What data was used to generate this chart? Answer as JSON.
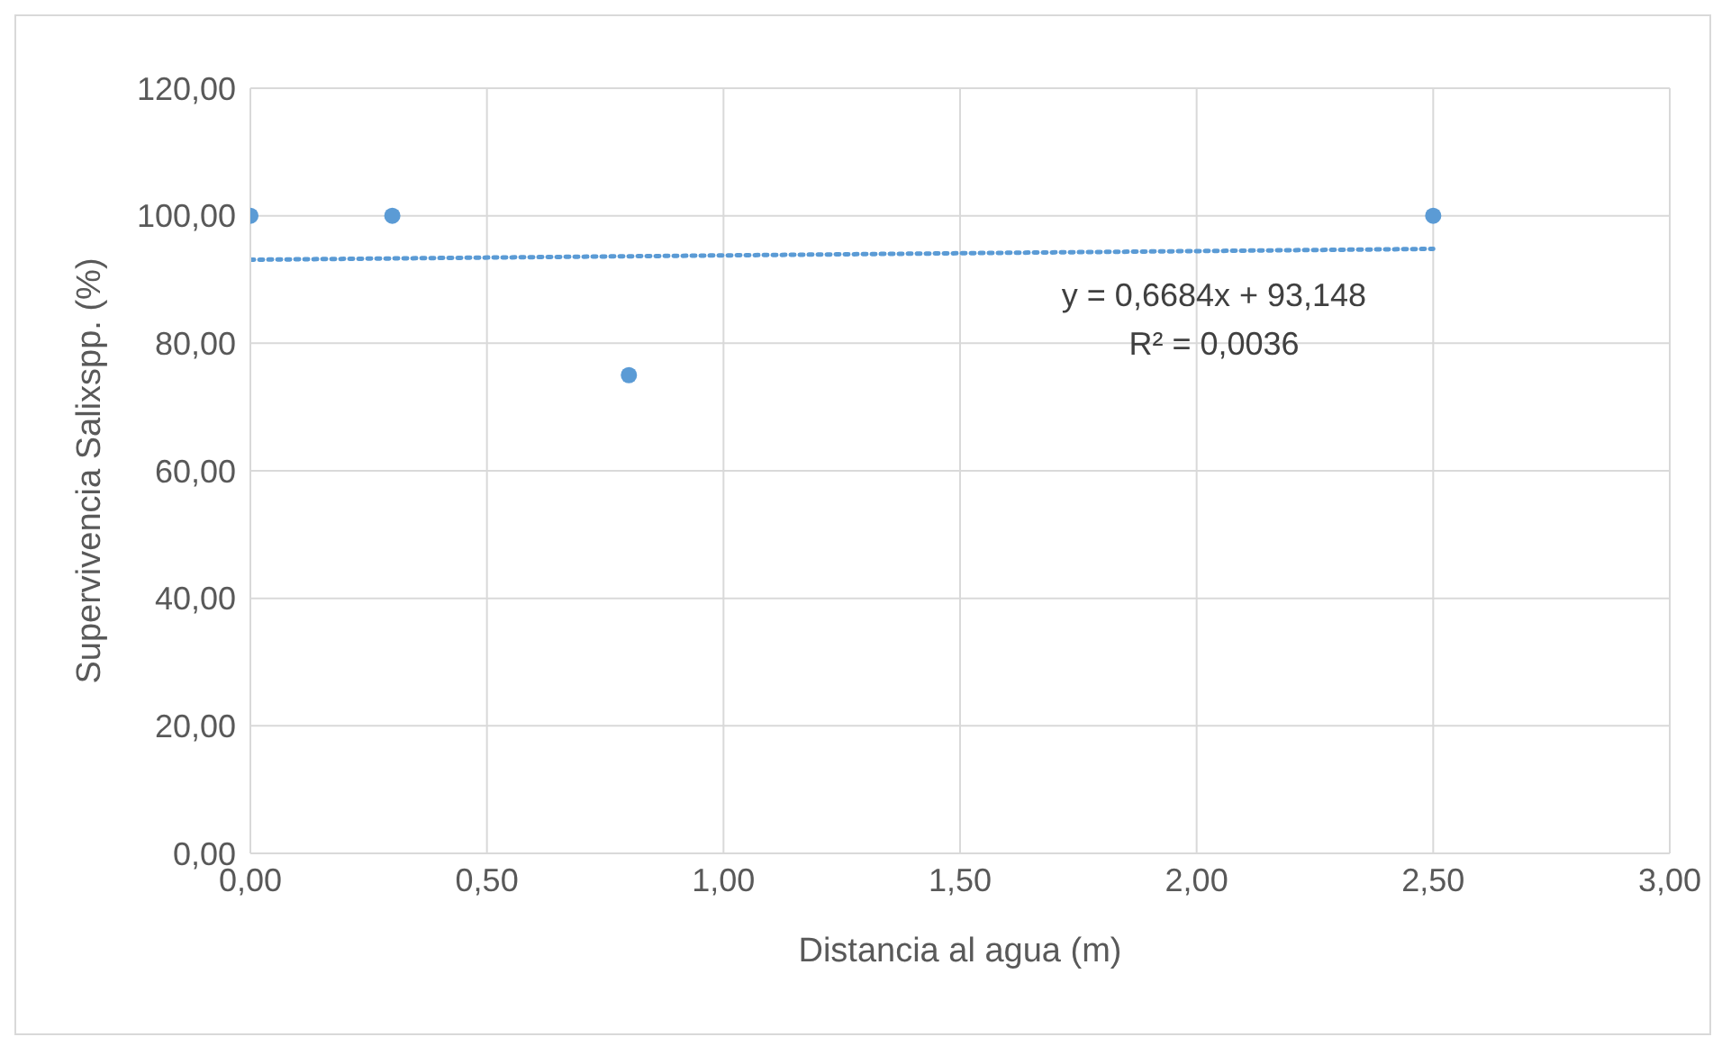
{
  "chart_data": {
    "type": "scatter",
    "xlabel": "Distancia al agua (m)",
    "ylabel": "Supervivencia Salixspp. (%)",
    "series": [
      {
        "color": "#5b9bd5",
        "x": [
          0,
          0.3,
          0.8,
          2.5
        ],
        "values": [
          100,
          100,
          75,
          100
        ],
        "marker": "circle"
      },
      {
        "type": "line",
        "color": "#5b9bd5",
        "x": [
          0,
          2.5
        ],
        "values": [
          93.1,
          94.8
        ],
        "marker": "none",
        "line_style": "dotted"
      }
    ],
    "xlim": [
      0,
      3
    ],
    "xticks": [
      {
        "value": 0,
        "label": "0,00"
      },
      {
        "value": 0.5,
        "label": "0,50"
      },
      {
        "value": 1,
        "label": "1,00"
      },
      {
        "value": 1.5,
        "label": "1,50"
      },
      {
        "value": 2,
        "label": "2,00"
      },
      {
        "value": 2.5,
        "label": "2,50"
      },
      {
        "value": 3,
        "label": "3,00"
      }
    ],
    "ylim": [
      0,
      120
    ],
    "yticks": [
      {
        "value": 0,
        "label": "0,00"
      },
      {
        "value": 20,
        "label": "20,00"
      },
      {
        "value": 40,
        "label": "40,00"
      },
      {
        "value": 60,
        "label": "60,00"
      },
      {
        "value": 80,
        "label": "80,00"
      },
      {
        "value": 100,
        "label": "100,00"
      },
      {
        "value": 120,
        "label": "120,00"
      }
    ],
    "grid": true,
    "annotations": [
      "y = 0,6684x + 93,148",
      "R² = 0,0036"
    ]
  }
}
